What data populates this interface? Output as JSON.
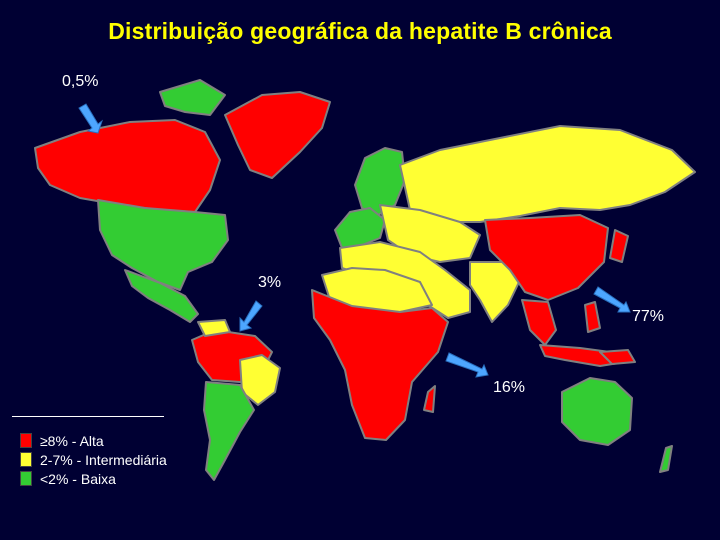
{
  "title": "Distribuição geográfica da hepatite B crônica",
  "annotations": [
    {
      "id": "na",
      "label": "0,5%"
    },
    {
      "id": "sa",
      "label": "3%"
    },
    {
      "id": "asia",
      "label": "77%"
    },
    {
      "id": "africa",
      "label": "16%"
    }
  ],
  "legend": [
    {
      "label": "≥8%  - Alta",
      "color": "#ff0000"
    },
    {
      "label": "2-7% - Intermediária",
      "color": "#ffff33"
    },
    {
      "label": "<2%  - Baixa",
      "color": "#33cc33"
    }
  ],
  "colors": {
    "background": "#000033",
    "title": "#ffff00",
    "arrow": "#4da6ff",
    "border": "#808080"
  }
}
